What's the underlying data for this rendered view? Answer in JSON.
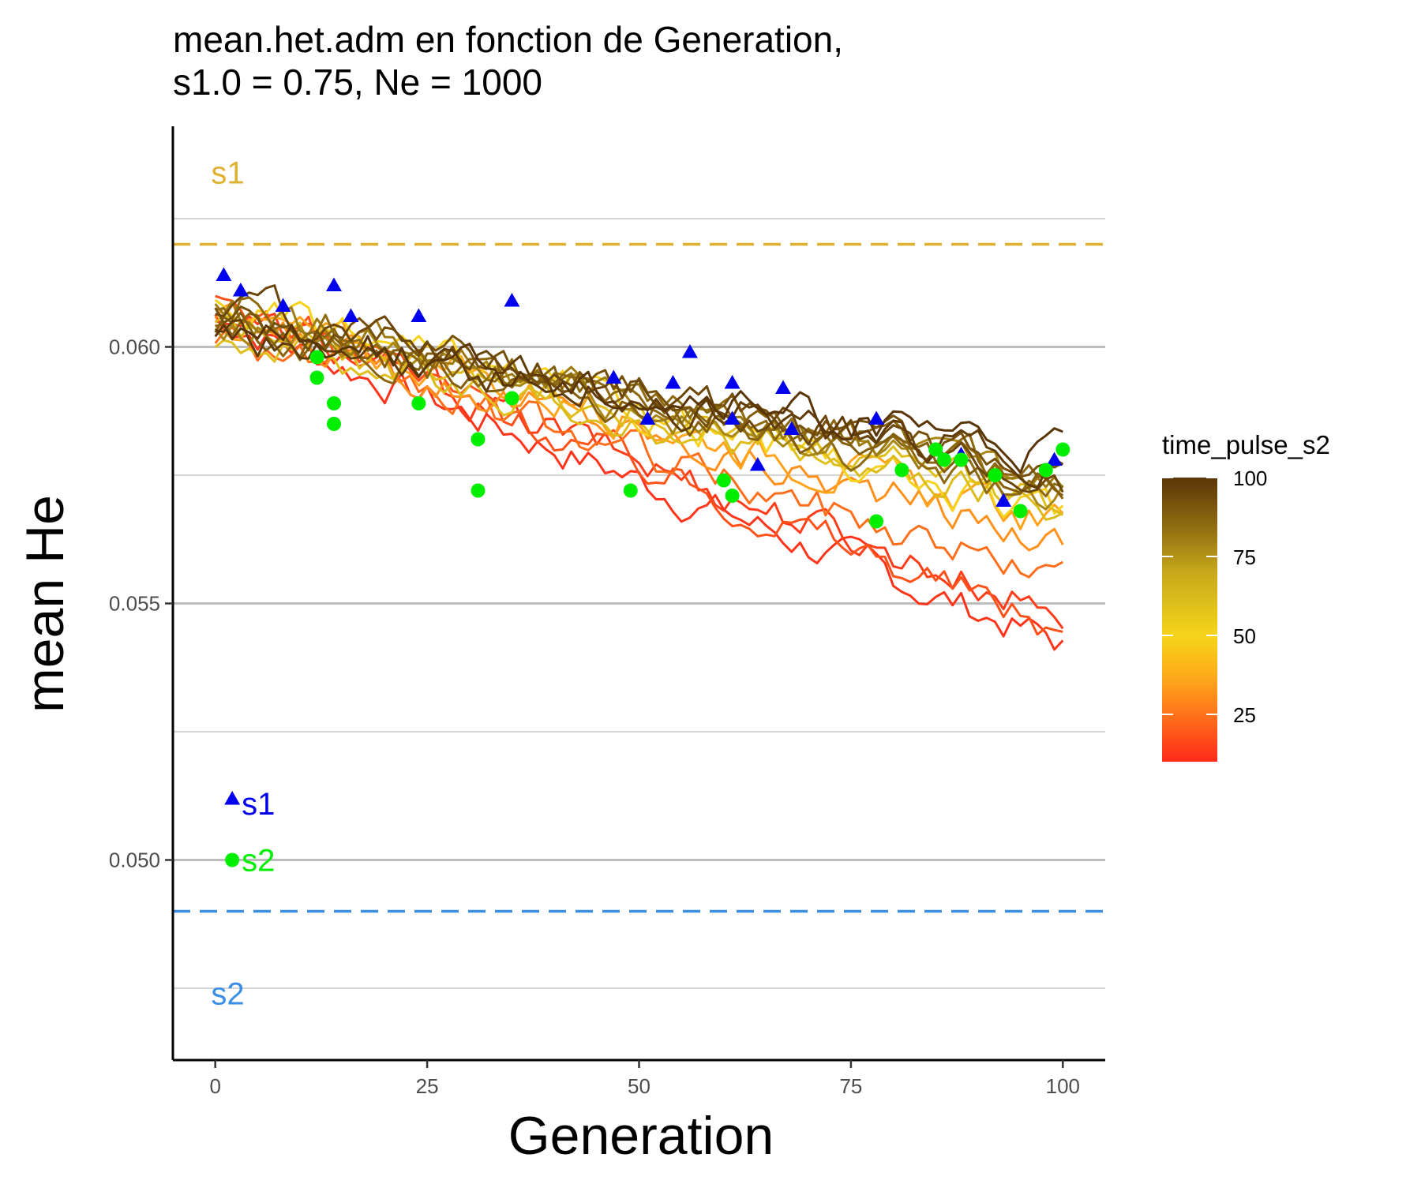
{
  "chart_data": {
    "type": "line",
    "title_line1": "mean.het.adm en fonction de Generation,",
    "title_line2": "s1.0 = 0.75, Ne = 1000",
    "xlabel": "Generation",
    "ylabel": "mean He",
    "xlim": [
      -5,
      105
    ],
    "ylim": [
      0.0461,
      0.0643
    ],
    "x_ticks": [
      0,
      25,
      50,
      75,
      100
    ],
    "x_tick_labels": [
      "0",
      "25",
      "50",
      "75",
      "100"
    ],
    "y_ticks": [
      0.05,
      0.055,
      0.06
    ],
    "y_tick_labels": [
      "0.050",
      "0.055",
      "0.060"
    ],
    "y_minor_gridlines": [
      0.0475,
      0.0525,
      0.0575,
      0.0625
    ],
    "grid": "horizontal",
    "reference_lines": [
      {
        "label": "s1",
        "y": 0.062,
        "color": "#E0B030",
        "dash": true,
        "label_y": 0.0634
      },
      {
        "label": "s2",
        "y": 0.049,
        "color": "#3A8EE6",
        "dash": true,
        "label_y": 0.0474
      }
    ],
    "legend": {
      "title": "time_pulse_s2",
      "placement": "right",
      "range": [
        10,
        100
      ],
      "ticks": [
        25,
        50,
        75,
        100
      ],
      "tick_labels": [
        "25",
        "50",
        "75",
        "100"
      ],
      "gradient_stops": [
        {
          "value": 10,
          "color": "#FF2A1A"
        },
        {
          "value": 35,
          "color": "#FFA31A"
        },
        {
          "value": 50,
          "color": "#F5D51A"
        },
        {
          "value": 70,
          "color": "#C8A81A"
        },
        {
          "value": 85,
          "color": "#8E6A10"
        },
        {
          "value": 100,
          "color": "#5A3508"
        }
      ]
    },
    "marker_key": [
      {
        "shape": "triangle",
        "label": "s1",
        "color": "#0000EE",
        "x": 2,
        "y": 0.0511
      },
      {
        "shape": "circle",
        "label": "s2",
        "color": "#00EE00",
        "x": 2,
        "y": 0.05
      }
    ],
    "series": [
      {
        "time_pulse_s2": 12,
        "end": 0.0542
      },
      {
        "time_pulse_s2": 14,
        "end": 0.0548
      },
      {
        "time_pulse_s2": 18,
        "end": 0.0545
      },
      {
        "time_pulse_s2": 24,
        "end": 0.0555
      },
      {
        "time_pulse_s2": 31,
        "end": 0.0562
      },
      {
        "time_pulse_s2": 35,
        "end": 0.0565
      },
      {
        "time_pulse_s2": 49,
        "end": 0.0566
      },
      {
        "time_pulse_s2": 60,
        "end": 0.057
      },
      {
        "time_pulse_s2": 61,
        "end": 0.0568
      },
      {
        "time_pulse_s2": 78,
        "end": 0.0571
      },
      {
        "time_pulse_s2": 81,
        "end": 0.0573
      },
      {
        "time_pulse_s2": 85,
        "end": 0.057
      },
      {
        "time_pulse_s2": 86,
        "end": 0.0575
      },
      {
        "time_pulse_s2": 88,
        "end": 0.0572
      },
      {
        "time_pulse_s2": 92,
        "end": 0.0576
      },
      {
        "time_pulse_s2": 95,
        "end": 0.0574
      },
      {
        "time_pulse_s2": 98,
        "end": 0.0577
      },
      {
        "time_pulse_s2": 100,
        "end": 0.0579
      }
    ],
    "s1_points": [
      {
        "x": 1,
        "y": 0.0614
      },
      {
        "x": 3,
        "y": 0.0611
      },
      {
        "x": 8,
        "y": 0.0608
      },
      {
        "x": 14,
        "y": 0.0612
      },
      {
        "x": 16,
        "y": 0.0606
      },
      {
        "x": 24,
        "y": 0.0606
      },
      {
        "x": 35,
        "y": 0.0609
      },
      {
        "x": 47,
        "y": 0.0594
      },
      {
        "x": 51,
        "y": 0.0586
      },
      {
        "x": 54,
        "y": 0.0593
      },
      {
        "x": 56,
        "y": 0.0599
      },
      {
        "x": 61,
        "y": 0.0593
      },
      {
        "x": 61,
        "y": 0.0586
      },
      {
        "x": 64,
        "y": 0.0577
      },
      {
        "x": 67,
        "y": 0.0592
      },
      {
        "x": 68,
        "y": 0.0584
      },
      {
        "x": 78,
        "y": 0.0586
      },
      {
        "x": 88,
        "y": 0.0579
      },
      {
        "x": 93,
        "y": 0.057
      },
      {
        "x": 99,
        "y": 0.0578
      }
    ],
    "s2_points": [
      {
        "x": 12,
        "y": 0.0598
      },
      {
        "x": 12,
        "y": 0.0594
      },
      {
        "x": 14,
        "y": 0.0589
      },
      {
        "x": 14,
        "y": 0.0585
      },
      {
        "x": 24,
        "y": 0.0589
      },
      {
        "x": 31,
        "y": 0.0582
      },
      {
        "x": 31,
        "y": 0.0572
      },
      {
        "x": 35,
        "y": 0.059
      },
      {
        "x": 49,
        "y": 0.0572
      },
      {
        "x": 60,
        "y": 0.0574
      },
      {
        "x": 61,
        "y": 0.0571
      },
      {
        "x": 78,
        "y": 0.0566
      },
      {
        "x": 81,
        "y": 0.0576
      },
      {
        "x": 85,
        "y": 0.058
      },
      {
        "x": 86,
        "y": 0.0578
      },
      {
        "x": 88,
        "y": 0.0578
      },
      {
        "x": 92,
        "y": 0.0575
      },
      {
        "x": 95,
        "y": 0.0568
      },
      {
        "x": 98,
        "y": 0.0576
      },
      {
        "x": 100,
        "y": 0.058
      }
    ]
  }
}
